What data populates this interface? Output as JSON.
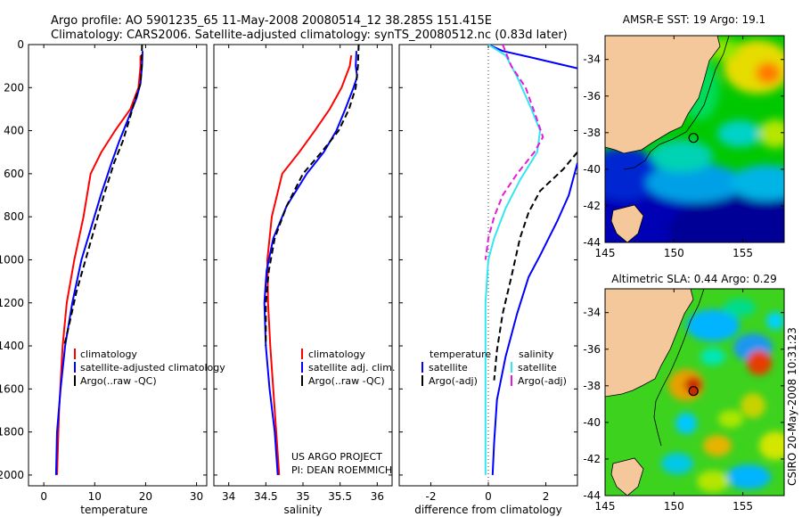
{
  "header": {
    "line1": "Argo profile: AO 5901235_65 11-May-2008 20080514_12 38.285S 151.415E",
    "line2": "Climatology: CARS2006. Satellite-adjusted climatology: synTS_20080512.nc (0.83d later)"
  },
  "side_text": "CSIRO 20-May-2008 10:31:23",
  "colors": {
    "red": "#ff0000",
    "blue": "#0000ff",
    "black": "#000000",
    "cyan": "#33e6f0",
    "magenta": "#e619d9"
  },
  "chart_data": [
    {
      "type": "line",
      "xlabel": "temperature",
      "ylabel": "",
      "xlim": [
        -3,
        32
      ],
      "ylim": [
        2050,
        0
      ],
      "xticks": [
        0,
        10,
        20,
        30
      ],
      "yticks": [
        0,
        200,
        400,
        600,
        800,
        1000,
        1200,
        1400,
        1600,
        1800,
        2000
      ],
      "legend": {
        "placement": "bottom-right",
        "entries": [
          {
            "label": "climatology",
            "color": "#ff0000"
          },
          {
            "label": "satellite-adjusted climatology",
            "color": "#0000ff"
          },
          {
            "label": "Argo(..raw -QC)",
            "color": "#000000"
          }
        ]
      },
      "series": [
        {
          "name": "climatology",
          "color": "#ff0000",
          "dash": false,
          "x": [
            19.0,
            19.0,
            18.6,
            17.0,
            14.0,
            11.3,
            9.2,
            7.8,
            6.0,
            4.5,
            3.7,
            3.0,
            2.6
          ],
          "y": [
            50,
            100,
            200,
            300,
            400,
            500,
            600,
            800,
            1000,
            1200,
            1400,
            1700,
            2000
          ]
        },
        {
          "name": "satellite-adjusted climatology",
          "color": "#0000ff",
          "dash": false,
          "x": [
            19.4,
            19.3,
            19.1,
            19.0,
            18.2,
            16.5,
            14.8,
            13.3,
            11.2,
            9.3,
            7.4,
            5.6,
            4.2,
            3.3,
            2.6,
            2.4
          ],
          "y": [
            30,
            100,
            150,
            180,
            250,
            350,
            450,
            550,
            700,
            850,
            1000,
            1200,
            1400,
            1600,
            1800,
            2000
          ]
        },
        {
          "name": "Argo(..raw -QC)",
          "color": "#000000",
          "dash": true,
          "x": [
            19.3,
            19.2,
            19.0,
            18.0,
            16.8,
            15.5,
            13.8,
            11.8,
            10.0,
            8.2,
            6.4,
            5.0,
            4.0
          ],
          "y": [
            0,
            100,
            180,
            250,
            350,
            450,
            550,
            700,
            850,
            1000,
            1150,
            1300,
            1400
          ]
        }
      ]
    },
    {
      "type": "line",
      "xlabel": "salinity",
      "ylabel": "",
      "xlim": [
        33.8,
        36.2
      ],
      "ylim": [
        2050,
        0
      ],
      "xticks": [
        34,
        34.5,
        35,
        35.5,
        36
      ],
      "legend": {
        "placement": "bottom-right",
        "entries": [
          {
            "label": "climatology",
            "color": "#ff0000"
          },
          {
            "label": "satellite adj. clim.",
            "color": "#0000ff"
          },
          {
            "label": "Argo(..raw -QC)",
            "color": "#000000"
          }
        ]
      },
      "annotation": [
        "US ARGO PROJECT",
        "PI: DEAN ROEMMICH"
      ],
      "series": [
        {
          "name": "climatology",
          "color": "#ff0000",
          "dash": false,
          "x": [
            35.65,
            35.63,
            35.52,
            35.36,
            35.16,
            34.95,
            34.72,
            34.58,
            34.52,
            34.53,
            34.56,
            34.62,
            34.68
          ],
          "y": [
            50,
            100,
            200,
            300,
            400,
            500,
            600,
            800,
            1000,
            1200,
            1400,
            1700,
            2000
          ]
        },
        {
          "name": "satellite adj. clim.",
          "color": "#0000ff",
          "dash": false,
          "x": [
            35.72,
            35.71,
            35.73,
            35.68,
            35.57,
            35.45,
            35.28,
            35.05,
            34.78,
            34.6,
            34.51,
            34.48,
            34.5,
            34.55,
            34.62,
            34.66
          ],
          "y": [
            30,
            100,
            150,
            200,
            300,
            400,
            500,
            600,
            750,
            900,
            1050,
            1200,
            1400,
            1600,
            1800,
            2000
          ]
        },
        {
          "name": "Argo(..raw -QC)",
          "color": "#000000",
          "dash": true,
          "x": [
            35.75,
            35.74,
            35.71,
            35.62,
            35.48,
            35.25,
            35.0,
            34.78,
            34.62,
            34.54,
            34.5,
            34.5
          ],
          "y": [
            0,
            100,
            200,
            300,
            400,
            500,
            600,
            750,
            900,
            1050,
            1200,
            1400
          ]
        }
      ]
    },
    {
      "type": "line",
      "xlabel": "difference from climatology",
      "ylabel": "",
      "xlim": [
        -3.1,
        3.1
      ],
      "ylim": [
        2050,
        0
      ],
      "xticks": [
        -2,
        0,
        2
      ],
      "legend": {
        "placement": "bottom",
        "entries": [
          {
            "label": "temperature",
            "color": ""
          },
          {
            "label": "satellite",
            "color": "#0000ff"
          },
          {
            "label": "Argo(-adj)",
            "color": "#000000"
          },
          {
            "label": "salinity",
            "color": ""
          },
          {
            "label": "satellite",
            "color": "#33e6f0"
          },
          {
            "label": "Argo(-adj)",
            "color": "#e619d9"
          }
        ]
      },
      "series": [
        {
          "name": "temperature satellite",
          "color": "#0000ff",
          "dash": false,
          "x": [
            0.0,
            0.5,
            1.5,
            3.1
          ],
          "y": [
            0,
            30,
            60,
            110
          ]
        },
        {
          "name": "temperature satellite",
          "color": "#0000ff",
          "dash": false,
          "x": [
            3.1,
            2.8,
            2.4,
            2.1,
            1.8,
            1.4,
            1.0,
            0.6,
            0.3,
            0.2,
            0.15
          ],
          "y": [
            550,
            700,
            820,
            900,
            980,
            1080,
            1250,
            1450,
            1650,
            1850,
            2000
          ]
        },
        {
          "name": "temperature Argo(-adj)",
          "color": "#000000",
          "dash": true,
          "x": [
            3.1,
            2.6,
            1.8,
            1.4,
            1.1,
            0.8,
            0.5,
            0.3,
            0.2
          ],
          "y": [
            500,
            580,
            680,
            780,
            900,
            1080,
            1250,
            1420,
            1560
          ]
        },
        {
          "name": "salinity satellite",
          "color": "#33e6f0",
          "dash": false,
          "x": [
            0.0,
            0.6,
            1.0,
            1.5,
            1.8,
            1.7,
            1.1,
            0.6,
            0.2,
            0.0,
            -0.1,
            -0.1,
            -0.1
          ],
          "y": [
            0,
            50,
            150,
            300,
            400,
            500,
            630,
            760,
            900,
            1000,
            1200,
            1600,
            2000
          ]
        },
        {
          "name": "salinity Argo(-adj)",
          "color": "#e619d9",
          "dash": true,
          "x": [
            0.5,
            0.8,
            1.3,
            1.7,
            1.9,
            1.6,
            1.0,
            0.5,
            0.2,
            0.0,
            -0.1
          ],
          "y": [
            0,
            100,
            200,
            350,
            430,
            500,
            600,
            700,
            800,
            900,
            1000
          ]
        }
      ]
    },
    {
      "type": "heatmap",
      "title": "AMSR-E SST: 19 Argo: 19.1",
      "xlim": [
        145,
        158
      ],
      "ylim": [
        -44,
        -32.7
      ],
      "xticks": [
        145,
        150,
        155
      ],
      "yticks": [
        -34,
        -36,
        -38,
        -40,
        -42,
        -44
      ],
      "marker": {
        "x": 151.415,
        "y": -38.285
      }
    },
    {
      "type": "heatmap",
      "title": "Altimetric SLA: 0.44 Argo: 0.29",
      "xlim": [
        145,
        158
      ],
      "ylim": [
        -44,
        -32.7
      ],
      "xticks": [
        145,
        150,
        155
      ],
      "yticks": [
        -34,
        -36,
        -38,
        -40,
        -42,
        -44
      ],
      "marker": {
        "x": 151.415,
        "y": -38.285
      }
    }
  ]
}
